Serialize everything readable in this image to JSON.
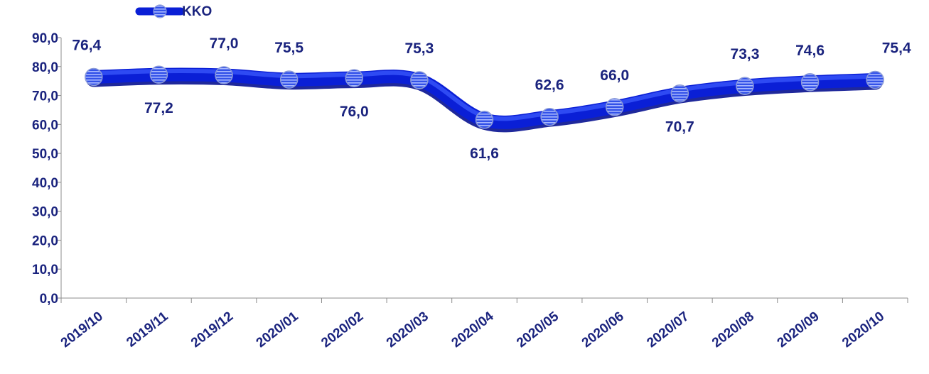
{
  "chart_data": {
    "type": "line",
    "categories": [
      "2019/10",
      "2019/11",
      "2019/12",
      "2020/01",
      "2020/02",
      "2020/03",
      "2020/04",
      "2020/05",
      "2020/06",
      "2020/07",
      "2020/08",
      "2020/09",
      "2020/10"
    ],
    "series": [
      {
        "name": "KKO",
        "values": [
          76.4,
          77.2,
          77.0,
          75.5,
          76.0,
          75.3,
          61.6,
          62.6,
          66.0,
          70.7,
          73.3,
          74.6,
          75.4
        ]
      }
    ],
    "value_labels": [
      "76,4",
      "77,2",
      "77,0",
      "75,5",
      "76,0",
      "75,3",
      "61,6",
      "62,6",
      "66,0",
      "70,7",
      "73,3",
      "74,6",
      "75,4"
    ],
    "label_positions": [
      "above",
      "below",
      "above",
      "above",
      "below",
      "above",
      "below",
      "above",
      "above",
      "below",
      "above",
      "above",
      "above"
    ],
    "yticks": [
      0,
      10,
      20,
      30,
      40,
      50,
      60,
      70,
      80,
      90
    ],
    "ytick_labels": [
      "0,0",
      "10,0",
      "20,0",
      "30,0",
      "40,0",
      "50,0",
      "60,0",
      "70,0",
      "80,0",
      "90,0"
    ],
    "ylim": [
      0,
      90
    ],
    "title": "",
    "xlabel": "",
    "ylabel": "",
    "grid": false,
    "legend_position": "top-left",
    "colors": {
      "line": "#0a1fd6",
      "line_dark": "#071190",
      "marker": "#3f5fe0",
      "text": "#1a237e",
      "axis": "#8c8c8c"
    }
  }
}
